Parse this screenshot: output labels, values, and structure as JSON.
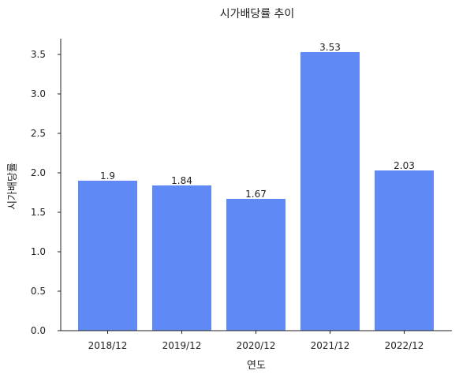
{
  "chart_data": {
    "type": "bar",
    "title": "시가배당률 추이",
    "xlabel": "연도",
    "ylabel": "시가배당률",
    "categories": [
      "2018/12",
      "2019/12",
      "2020/12",
      "2021/12",
      "2022/12"
    ],
    "values": [
      1.9,
      1.84,
      1.67,
      3.53,
      2.03
    ],
    "value_labels": [
      "1.9",
      "1.84",
      "1.67",
      "3.53",
      "2.03"
    ],
    "ylim": [
      0,
      3.7
    ],
    "yticks": [
      0.0,
      0.5,
      1.0,
      1.5,
      2.0,
      2.5,
      3.0,
      3.5
    ],
    "ytick_labels": [
      "0.0",
      "0.5",
      "1.0",
      "1.5",
      "2.0",
      "2.5",
      "3.0",
      "3.5"
    ],
    "bar_color": "#5f8af5",
    "grid": false,
    "legend": "none"
  }
}
